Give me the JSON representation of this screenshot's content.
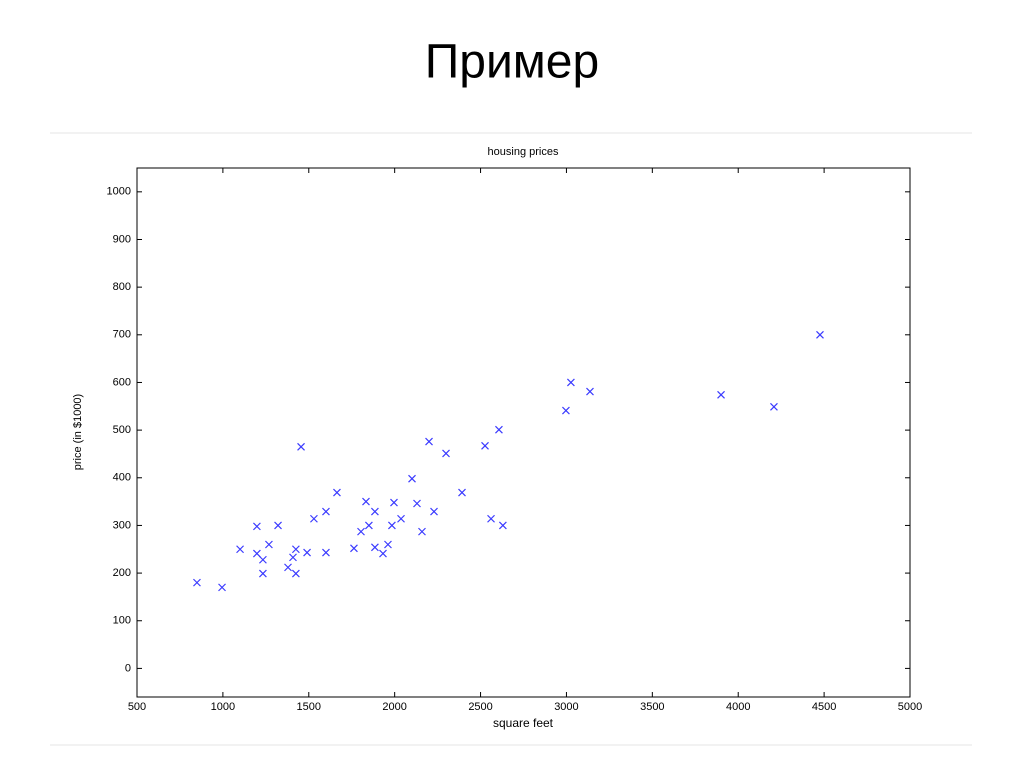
{
  "slide_title": "Пример",
  "chart_data": {
    "type": "scatter",
    "title": "housing prices",
    "x_label": "square feet",
    "y_label": "price (in $1000)",
    "x": [
      849,
      995,
      1100,
      1198,
      1198,
      1233,
      1233,
      1268,
      1321,
      1379,
      1408,
      1425,
      1425,
      1455,
      1490,
      1530,
      1600,
      1600,
      1664,
      1763,
      1804,
      1833,
      1850,
      1885,
      1885,
      1932,
      1961,
      1984,
      1996,
      2037,
      2101,
      2130,
      2159,
      2200,
      2229,
      2299,
      2392,
      2526,
      2561,
      2607,
      2630,
      2997,
      3026,
      3137,
      3900,
      4208,
      4476
    ],
    "y": [
      180,
      170,
      250,
      298,
      241,
      228,
      199,
      260,
      300,
      212,
      233,
      250,
      199,
      465,
      243,
      314,
      329,
      243,
      369,
      252,
      287,
      350,
      300,
      329,
      254,
      241,
      260,
      300,
      348,
      314,
      398,
      346,
      287,
      476,
      329,
      451,
      369,
      467,
      314,
      501,
      300,
      541,
      600,
      581,
      574,
      549,
      700
    ],
    "color": "#3a3aff",
    "marker": "x",
    "xlim": [
      500,
      5000
    ],
    "xticks": [
      500,
      1000,
      1500,
      2000,
      2500,
      3000,
      3500,
      4000,
      4500,
      5000
    ],
    "ylim": [
      -60,
      1050
    ],
    "yticks": [
      0,
      100,
      200,
      300,
      400,
      500,
      600,
      700,
      800,
      900,
      1000
    ]
  }
}
